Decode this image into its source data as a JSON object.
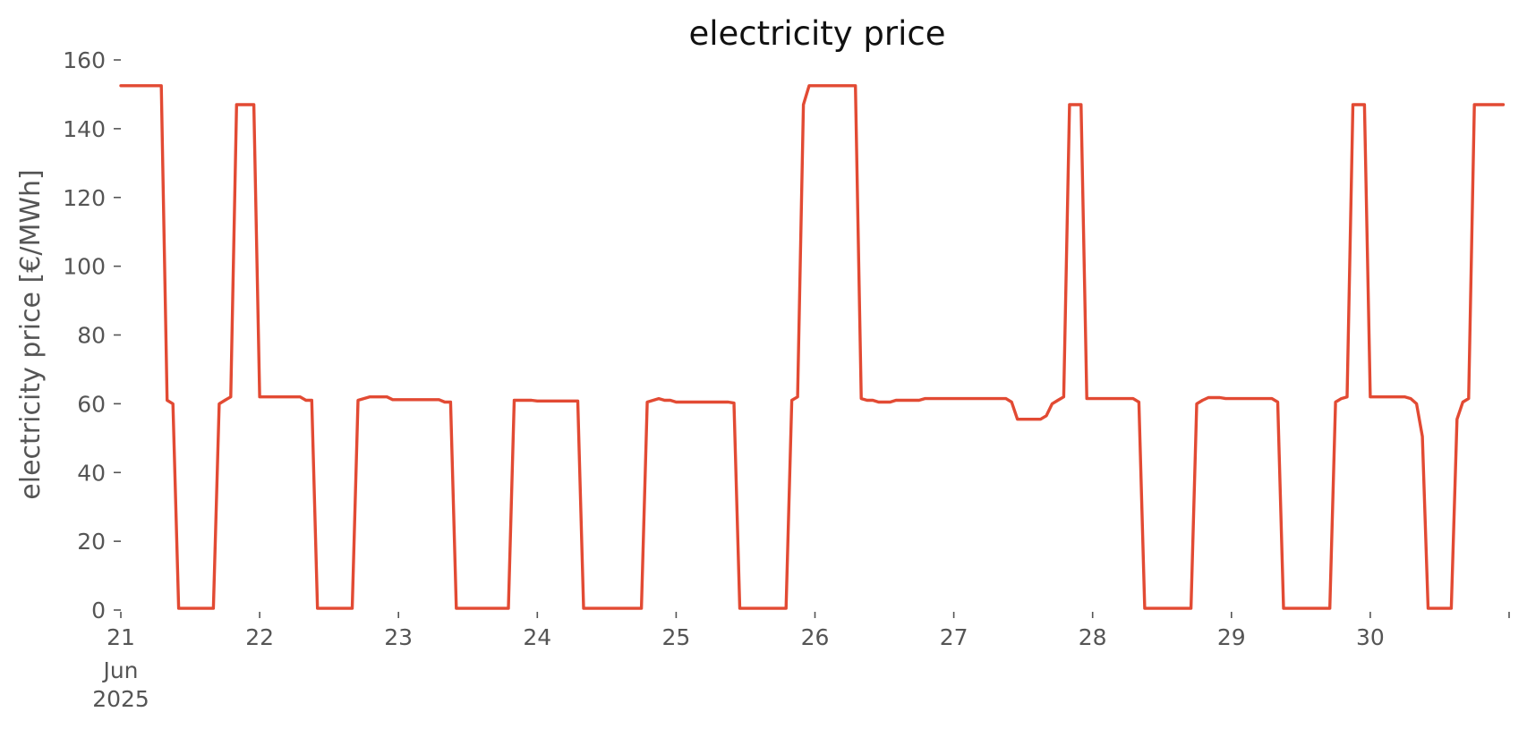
{
  "chart_data": {
    "type": "line",
    "title": "electricity price",
    "xlabel": "",
    "ylabel": "electricity price [€/MWh]",
    "ylim": [
      0,
      160
    ],
    "xlim": [
      "2025-06-21T00:00",
      "2025-07-01T00:00"
    ],
    "yticks": [
      0,
      20,
      40,
      60,
      80,
      100,
      120,
      140,
      160
    ],
    "ytick_labels": [
      "0",
      "20",
      "40",
      "60",
      "80",
      "100",
      "120",
      "140",
      "160"
    ],
    "xticks": [
      {
        "x": "2025-06-21T00:00",
        "label": "21",
        "sublabels": [
          "Jun",
          "2025"
        ]
      },
      {
        "x": "2025-06-22T00:00",
        "label": "22"
      },
      {
        "x": "2025-06-23T00:00",
        "label": "23"
      },
      {
        "x": "2025-06-24T00:00",
        "label": "24"
      },
      {
        "x": "2025-06-25T00:00",
        "label": "25"
      },
      {
        "x": "2025-06-26T00:00",
        "label": "26"
      },
      {
        "x": "2025-06-27T00:00",
        "label": "27"
      },
      {
        "x": "2025-06-28T00:00",
        "label": "28"
      },
      {
        "x": "2025-06-29T00:00",
        "label": "29"
      },
      {
        "x": "2025-06-30T00:00",
        "label": "30"
      },
      {
        "x": "2025-07-01T00:00",
        "label": ""
      }
    ],
    "grid": false,
    "series": [
      {
        "color": "#e24a33",
        "points": [
          [
            "2025-06-21T00:00",
            152.5
          ],
          [
            "2025-06-21T07:00",
            152.5
          ],
          [
            "2025-06-21T08:00",
            61
          ],
          [
            "2025-06-21T09:00",
            60
          ],
          [
            "2025-06-21T10:00",
            0.5
          ],
          [
            "2025-06-21T16:00",
            0.5
          ],
          [
            "2025-06-21T17:00",
            60
          ],
          [
            "2025-06-21T18:00",
            61
          ],
          [
            "2025-06-21T19:00",
            62
          ],
          [
            "2025-06-21T20:00",
            147
          ],
          [
            "2025-06-21T23:00",
            147
          ],
          [
            "2025-06-22T00:00",
            62
          ],
          [
            "2025-06-22T06:00",
            62
          ],
          [
            "2025-06-22T07:00",
            62
          ],
          [
            "2025-06-22T08:00",
            61
          ],
          [
            "2025-06-22T09:00",
            61
          ],
          [
            "2025-06-22T10:00",
            0.5
          ],
          [
            "2025-06-22T16:00",
            0.5
          ],
          [
            "2025-06-22T17:00",
            61
          ],
          [
            "2025-06-22T18:00",
            61.5
          ],
          [
            "2025-06-22T19:00",
            62
          ],
          [
            "2025-06-22T22:00",
            62
          ],
          [
            "2025-06-22T23:00",
            61.2
          ],
          [
            "2025-06-23T07:00",
            61.2
          ],
          [
            "2025-06-23T08:00",
            60.5
          ],
          [
            "2025-06-23T09:00",
            60.5
          ],
          [
            "2025-06-23T10:00",
            0.5
          ],
          [
            "2025-06-23T19:00",
            0.5
          ],
          [
            "2025-06-23T20:00",
            61
          ],
          [
            "2025-06-23T23:00",
            61
          ],
          [
            "2025-06-24T00:00",
            60.8
          ],
          [
            "2025-06-24T07:00",
            60.8
          ],
          [
            "2025-06-24T08:00",
            0.5
          ],
          [
            "2025-06-24T18:00",
            0.5
          ],
          [
            "2025-06-24T19:00",
            60.5
          ],
          [
            "2025-06-24T21:00",
            61.5
          ],
          [
            "2025-06-24T22:00",
            61
          ],
          [
            "2025-06-24T23:00",
            61
          ],
          [
            "2025-06-25T00:00",
            60.5
          ],
          [
            "2025-06-25T09:00",
            60.5
          ],
          [
            "2025-06-25T10:00",
            60.2
          ],
          [
            "2025-06-25T11:00",
            0.5
          ],
          [
            "2025-06-25T19:00",
            0.5
          ],
          [
            "2025-06-25T20:00",
            61
          ],
          [
            "2025-06-25T21:00",
            62
          ],
          [
            "2025-06-25T22:00",
            147
          ],
          [
            "2025-06-25T23:00",
            152.5
          ],
          [
            "2025-06-26T07:00",
            152.5
          ],
          [
            "2025-06-26T08:00",
            61.5
          ],
          [
            "2025-06-26T09:00",
            61
          ],
          [
            "2025-06-26T10:00",
            61
          ],
          [
            "2025-06-26T11:00",
            60.5
          ],
          [
            "2025-06-26T13:00",
            60.5
          ],
          [
            "2025-06-26T14:00",
            61
          ],
          [
            "2025-06-26T18:00",
            61
          ],
          [
            "2025-06-26T19:00",
            61.5
          ],
          [
            "2025-06-27T09:00",
            61.5
          ],
          [
            "2025-06-27T10:00",
            60.5
          ],
          [
            "2025-06-27T11:00",
            55.5
          ],
          [
            "2025-06-27T15:00",
            55.5
          ],
          [
            "2025-06-27T16:00",
            56.5
          ],
          [
            "2025-06-27T17:00",
            60
          ],
          [
            "2025-06-27T18:00",
            61
          ],
          [
            "2025-06-27T19:00",
            62
          ],
          [
            "2025-06-27T20:00",
            147
          ],
          [
            "2025-06-27T22:00",
            147
          ],
          [
            "2025-06-27T23:00",
            61.5
          ],
          [
            "2025-06-28T06:00",
            61.5
          ],
          [
            "2025-06-28T07:00",
            61.5
          ],
          [
            "2025-06-28T08:00",
            60.5
          ],
          [
            "2025-06-28T09:00",
            0.5
          ],
          [
            "2025-06-28T17:00",
            0.5
          ],
          [
            "2025-06-28T18:00",
            60
          ],
          [
            "2025-06-28T19:00",
            61
          ],
          [
            "2025-06-28T20:00",
            61.8
          ],
          [
            "2025-06-28T22:00",
            61.8
          ],
          [
            "2025-06-28T23:00",
            61.5
          ],
          [
            "2025-06-29T06:00",
            61.5
          ],
          [
            "2025-06-29T07:00",
            61.5
          ],
          [
            "2025-06-29T08:00",
            60.5
          ],
          [
            "2025-06-29T09:00",
            0.5
          ],
          [
            "2025-06-29T17:00",
            0.5
          ],
          [
            "2025-06-29T18:00",
            60.5
          ],
          [
            "2025-06-29T19:00",
            61.5
          ],
          [
            "2025-06-29T20:00",
            62
          ],
          [
            "2025-06-29T21:00",
            147
          ],
          [
            "2025-06-29T23:00",
            147
          ],
          [
            "2025-06-30T00:00",
            62
          ],
          [
            "2025-06-30T06:00",
            62
          ],
          [
            "2025-06-30T07:00",
            61.5
          ],
          [
            "2025-06-30T08:00",
            60
          ],
          [
            "2025-06-30T09:00",
            50.5
          ],
          [
            "2025-06-30T10:00",
            0.5
          ],
          [
            "2025-06-30T14:00",
            0.5
          ],
          [
            "2025-06-30T15:00",
            55.5
          ],
          [
            "2025-06-30T16:00",
            60.5
          ],
          [
            "2025-06-30T17:00",
            61.5
          ],
          [
            "2025-06-30T18:00",
            147
          ],
          [
            "2025-06-30T23:00",
            147
          ]
        ]
      }
    ]
  }
}
